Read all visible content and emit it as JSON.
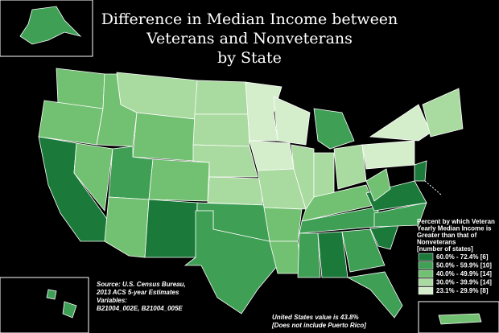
{
  "title": [
    "Difference in Median Income between",
    "Veterans and Nonveterans",
    "by State"
  ],
  "legend": {
    "title": [
      "Percent by which Veteran",
      "Yearly Median Income is",
      "Greater than that of",
      "Nonveterans",
      "[number of states]"
    ],
    "items": [
      {
        "label": "60.0% - 72.4% [6]",
        "color": "#1b7a3a"
      },
      {
        "label": "50.0% - 59.9% [10]",
        "color": "#3f9f55"
      },
      {
        "label": "40.0% - 49.9% [14]",
        "color": "#72c071"
      },
      {
        "label": "30.0% - 39.9% [14]",
        "color": "#a9da9f"
      },
      {
        "label": "23.1% - 29.9% [8]",
        "color": "#d4eecc"
      }
    ]
  },
  "source": [
    "Source: U.S. Census Bureau,",
    "2013 ACS 5-year Estimates",
    "Variables:",
    "B21004_002E, B21004_005E"
  ],
  "note": [
    "United States value is 43.8%",
    "[Does not include Puerto Rico]"
  ]
}
